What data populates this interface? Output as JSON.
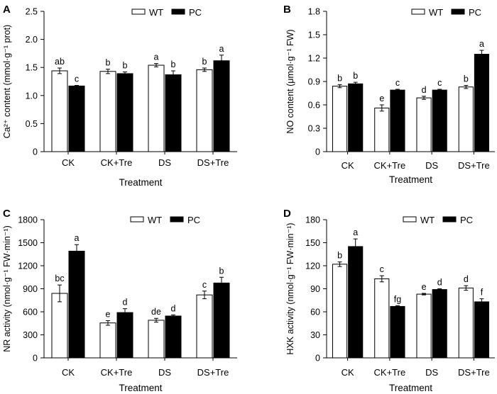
{
  "chart_data": [
    {
      "panel": "A",
      "type": "bar",
      "categories": [
        "CK",
        "CK+Tre",
        "DS",
        "DS+Tre"
      ],
      "series": [
        {
          "name": "WT",
          "color": "#ffffff",
          "values": [
            1.44,
            1.43,
            1.54,
            1.46
          ],
          "errors": [
            0.05,
            0.04,
            0.03,
            0.03
          ],
          "labels": [
            "ab",
            "b",
            "a",
            "b"
          ]
        },
        {
          "name": "PC",
          "color": "#000000",
          "values": [
            1.17,
            1.39,
            1.37,
            1.62
          ],
          "errors": [
            0.01,
            0.03,
            0.07,
            0.1
          ],
          "labels": [
            "c",
            "b",
            "b",
            "a"
          ]
        }
      ],
      "ylabel": "Ca²⁺ content (mmol·g⁻¹ prot)",
      "xlabel": "Treatment",
      "ylim": [
        0,
        2.5
      ],
      "yticks": [
        "0",
        "0.5",
        "1.0",
        "1.5",
        "2.0",
        "2.5"
      ],
      "legend": "top-right",
      "grid": false
    },
    {
      "panel": "B",
      "type": "bar",
      "categories": [
        "CK",
        "CK+Tre",
        "DS",
        "DS+Tre"
      ],
      "series": [
        {
          "name": "WT",
          "color": "#ffffff",
          "values": [
            0.84,
            0.56,
            0.69,
            0.83
          ],
          "errors": [
            0.02,
            0.04,
            0.02,
            0.02
          ],
          "labels": [
            "b",
            "e",
            "d",
            "b"
          ]
        },
        {
          "name": "PC",
          "color": "#000000",
          "values": [
            0.87,
            0.79,
            0.79,
            1.25
          ],
          "errors": [
            0.02,
            0.01,
            0.01,
            0.05
          ],
          "labels": [
            "b",
            "c",
            "c",
            "a"
          ]
        }
      ],
      "ylabel": "NO content (μmol·g⁻¹ FW)",
      "xlabel": "Treatment",
      "ylim": [
        0,
        1.8
      ],
      "yticks": [
        "0",
        "0.3",
        "0.6",
        "0.9",
        "1.2",
        "1.5",
        "1.8"
      ],
      "legend": "top-right",
      "grid": false
    },
    {
      "panel": "C",
      "type": "bar",
      "categories": [
        "CK",
        "CK+Tre",
        "DS",
        "DS+Tre"
      ],
      "series": [
        {
          "name": "WT",
          "color": "#ffffff",
          "values": [
            840,
            455,
            490,
            820
          ],
          "errors": [
            110,
            30,
            25,
            50
          ],
          "labels": [
            "bc",
            "e",
            "de",
            "c"
          ]
        },
        {
          "name": "PC",
          "color": "#000000",
          "values": [
            1390,
            590,
            545,
            975
          ],
          "errors": [
            85,
            50,
            15,
            75
          ],
          "labels": [
            "a",
            "d",
            "d",
            "b"
          ]
        }
      ],
      "ylabel": "NR activity (nmol·g⁻¹ FW·min⁻¹)",
      "xlabel": "Treatment",
      "ylim": [
        0,
        1800
      ],
      "yticks": [
        "0",
        "300",
        "600",
        "900",
        "1200",
        "1500",
        "1800"
      ],
      "legend": "top-right",
      "grid": false
    },
    {
      "panel": "D",
      "type": "bar",
      "categories": [
        "CK",
        "CK+Tre",
        "DS",
        "DS+Tre"
      ],
      "series": [
        {
          "name": "WT",
          "color": "#ffffff",
          "values": [
            122,
            103,
            83,
            91
          ],
          "errors": [
            3,
            4,
            1,
            3
          ],
          "labels": [
            "b",
            "c",
            "e",
            "d"
          ]
        },
        {
          "name": "PC",
          "color": "#000000",
          "values": [
            145,
            67,
            89,
            73
          ],
          "errors": [
            10,
            1,
            1,
            4
          ],
          "labels": [
            "a",
            "fg",
            "d",
            "f"
          ]
        }
      ],
      "ylabel": "HXK activity (nmol·g⁻¹ FW·min⁻¹)",
      "xlabel": "Treatment",
      "ylim": [
        0,
        180
      ],
      "yticks": [
        "0",
        "30",
        "60",
        "90",
        "120",
        "150",
        "180"
      ],
      "legend": "top-right",
      "grid": false
    }
  ]
}
